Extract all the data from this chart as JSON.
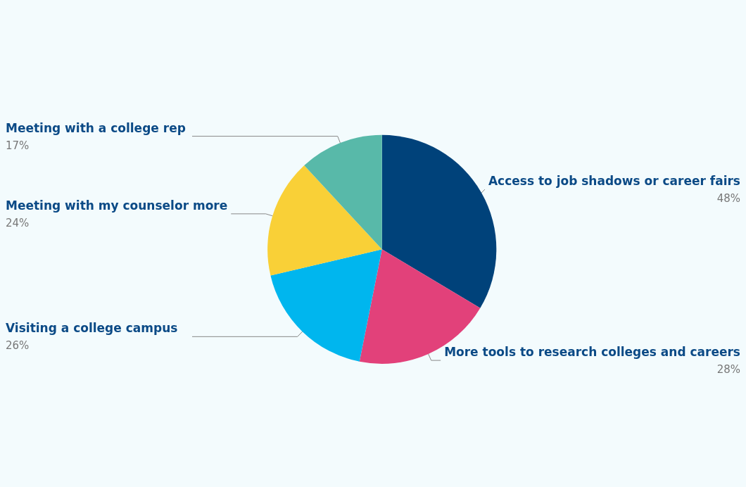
{
  "chart_data": {
    "type": "pie",
    "categories": [
      "Access to job shadows or career fairs",
      "More tools to research colleges and careers",
      "Visiting a college campus",
      "Meeting with my counselor more",
      "Meeting with a college rep"
    ],
    "values": [
      48,
      28,
      26,
      24,
      17
    ],
    "value_labels": [
      "48%",
      "28%",
      "26%",
      "24%",
      "17%"
    ],
    "colors": [
      "#00427a",
      "#e2417a",
      "#00b6ee",
      "#f9d037",
      "#58b9a9"
    ],
    "legend": false
  }
}
